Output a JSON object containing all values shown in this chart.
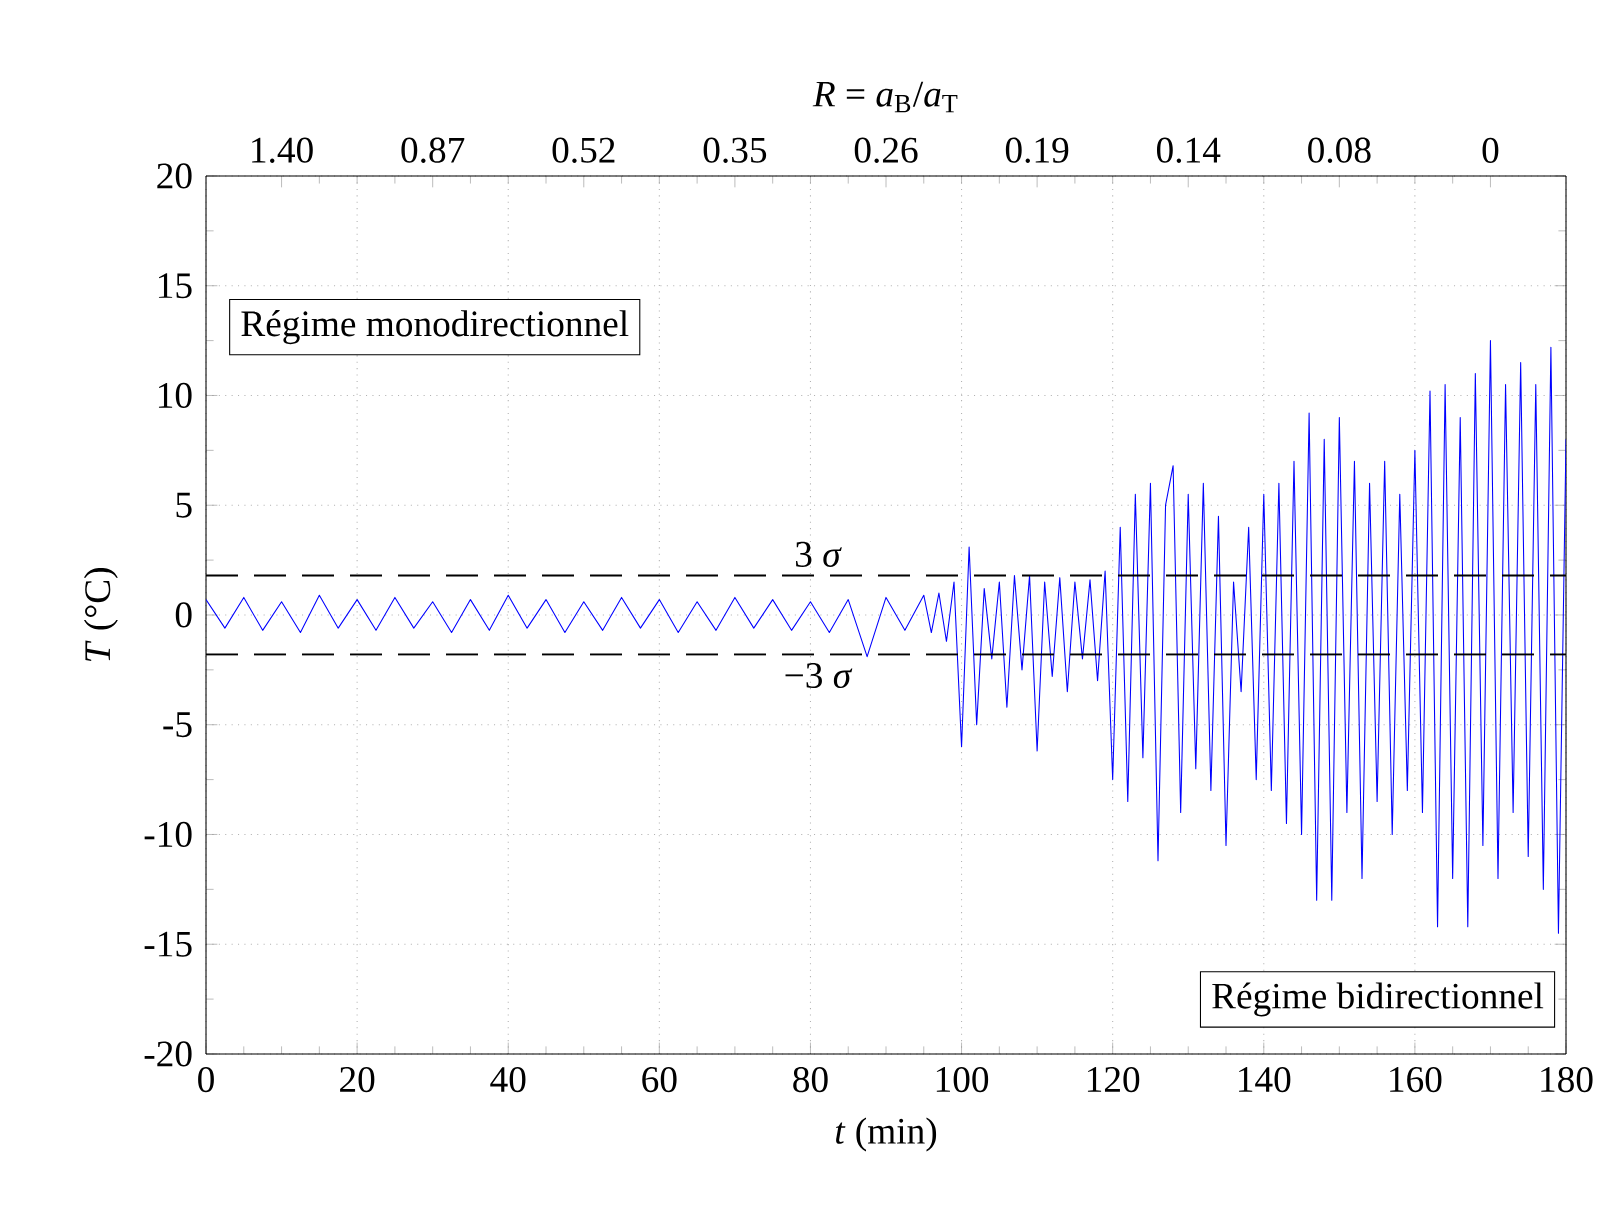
{
  "chart_data": {
    "type": "line",
    "xlabel": "*t* (min)",
    "ylabel": "*T* (°C)",
    "x2label": "*R* = *a*$_{B}$/*a*$_{T}$",
    "xlim": [
      0,
      180
    ],
    "xticks": [
      0,
      20,
      40,
      60,
      80,
      100,
      120,
      140,
      160,
      180
    ],
    "ylim": [
      -20,
      20
    ],
    "yticks": [
      -20,
      -15,
      -10,
      -5,
      0,
      5,
      10,
      15,
      20
    ],
    "grid": true,
    "marker": "none",
    "line_style": "solid",
    "ref_lines": [
      {
        "axis": "y",
        "value": 1.8,
        "label": "3 *σ*",
        "color": "#000000",
        "line_style": "dashed"
      },
      {
        "axis": "y",
        "value": -1.8,
        "label": "−3 *σ*",
        "color": "#000000",
        "line_style": "dashed"
      }
    ],
    "annotations": [
      "Régime monodirectionnel",
      "Régime bidirectionnel",
      "1.40",
      "0.87",
      "0.52",
      "0.35",
      "0.26",
      "0.19",
      "0.14",
      "0.08",
      "0"
    ],
    "series": [
      {
        "color": "#0000ff",
        "x": [
          0,
          2.5,
          5,
          7.5,
          10,
          12.5,
          15,
          17.5,
          20,
          22.5,
          25,
          27.5,
          30,
          32.5,
          35,
          37.5,
          40,
          42.5,
          45,
          47.5,
          50,
          52.5,
          55,
          57.5,
          60,
          62.5,
          65,
          67.5,
          70,
          72.5,
          75,
          77.5,
          80,
          82.5,
          85,
          87.5,
          90,
          92.5,
          95,
          96,
          97,
          98,
          99,
          100,
          101,
          102,
          103,
          104,
          105,
          106,
          107,
          108,
          109,
          110,
          111,
          112,
          113,
          114,
          115,
          116,
          117,
          118,
          119,
          120,
          121,
          122,
          123,
          124,
          125,
          126,
          127,
          128,
          129,
          130,
          131,
          132,
          133,
          134,
          135,
          136,
          137,
          138,
          139,
          140,
          141,
          142,
          143,
          144,
          145,
          146,
          147,
          148,
          149,
          150,
          151,
          152,
          153,
          154,
          155,
          156,
          157,
          158,
          159,
          160,
          161,
          162,
          163,
          164,
          165,
          166,
          167,
          168,
          169,
          170,
          171,
          172,
          173,
          174,
          175,
          176,
          177,
          178,
          179,
          180
        ],
        "values": [
          0.7,
          -0.6,
          0.8,
          -0.7,
          0.6,
          -0.8,
          0.9,
          -0.6,
          0.7,
          -0.7,
          0.8,
          -0.6,
          0.6,
          -0.8,
          0.7,
          -0.7,
          0.9,
          -0.6,
          0.7,
          -0.8,
          0.6,
          -0.7,
          0.8,
          -0.6,
          0.7,
          -0.8,
          0.6,
          -0.7,
          0.8,
          -0.6,
          0.7,
          -0.7,
          0.6,
          -0.8,
          0.7,
          -1.9,
          0.8,
          -0.7,
          0.9,
          -0.8,
          1.0,
          -1.2,
          1.5,
          -6.0,
          3.1,
          -5.0,
          1.2,
          -2.0,
          1.5,
          -4.2,
          1.8,
          -2.5,
          1.8,
          -6.2,
          1.5,
          -2.8,
          1.7,
          -3.5,
          1.5,
          -2.0,
          1.6,
          -3.0,
          2.0,
          -7.5,
          4.0,
          -8.5,
          5.5,
          -6.5,
          6.0,
          -11.2,
          5.0,
          6.8,
          -9.0,
          5.5,
          -7.0,
          6.0,
          -8.0,
          4.5,
          -10.5,
          1.5,
          -3.5,
          4.0,
          -7.5,
          5.5,
          -8.0,
          6.0,
          -9.5,
          7.0,
          -10.0,
          9.2,
          -13.0,
          8.0,
          -13.0,
          9.0,
          -9.0,
          7.0,
          -12.0,
          6.0,
          -8.5,
          7.0,
          -10.0,
          5.5,
          -8.0,
          7.5,
          -9.0,
          10.2,
          -14.2,
          10.5,
          -12.0,
          9.0,
          -14.2,
          11.0,
          -10.5,
          12.5,
          -12.0,
          10.5,
          -9.0,
          11.5,
          -11.0,
          10.5,
          -12.5,
          12.2,
          -14.5,
          8.0
        ]
      }
    ]
  }
}
